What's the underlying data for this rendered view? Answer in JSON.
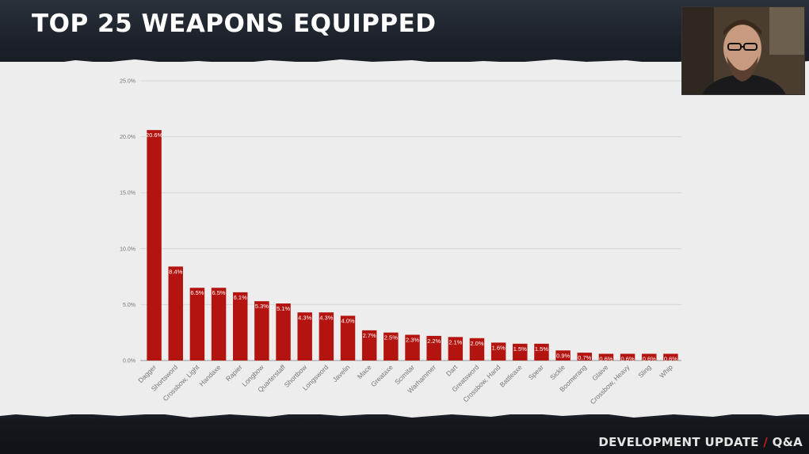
{
  "header": {
    "title": "TOP 25 WEAPONS EQUIPPED"
  },
  "footer": {
    "left": "DEVELOPMENT UPDATE",
    "separator": "/",
    "right": "Q&A"
  },
  "colors": {
    "bar": "#b3140f",
    "accent": "#c0221b"
  },
  "chart_data": {
    "type": "bar",
    "title": "",
    "xlabel": "",
    "ylabel": "",
    "ylim": [
      0,
      25
    ],
    "yticks": [
      "0.0%",
      "5.0%",
      "10.0%",
      "15.0%",
      "20.0%",
      "25.0%"
    ],
    "grid": true,
    "categories": [
      "Dagger",
      "Shortsword",
      "Crossbow, Light",
      "Handaxe",
      "Rapier",
      "Longbow",
      "Quarterstaff",
      "Shortbow",
      "Longsword",
      "Javelin",
      "Mace",
      "Greataxe",
      "Scimitar",
      "Warhammer",
      "Dart",
      "Greatsword",
      "Crossbow, Hand",
      "Battleaxe",
      "Spear",
      "Sickle",
      "Boomerang",
      "Glaive",
      "Crossbow, Heavy",
      "Sling",
      "Whip"
    ],
    "values": [
      20.6,
      8.4,
      6.5,
      6.5,
      6.1,
      5.3,
      5.1,
      4.3,
      4.3,
      4.0,
      2.7,
      2.5,
      2.3,
      2.2,
      2.1,
      2.0,
      1.6,
      1.5,
      1.5,
      0.9,
      0.7,
      0.6,
      0.6,
      0.6,
      0.6
    ],
    "labels": [
      "20.6%",
      "8.4%",
      "6.5%",
      "6.5%",
      "6.1%",
      "5.3%",
      "5.1%",
      "4.3%",
      "4.3%",
      "4.0%",
      "2.7%",
      "2.5%",
      "2.3%",
      "2.2%",
      "2.1%",
      "2.0%",
      "1.6%",
      "1.5%",
      "1.5%",
      "0.9%",
      "0.7%",
      "0.6%",
      "0.6%",
      "0.6%",
      "0.6%"
    ]
  }
}
